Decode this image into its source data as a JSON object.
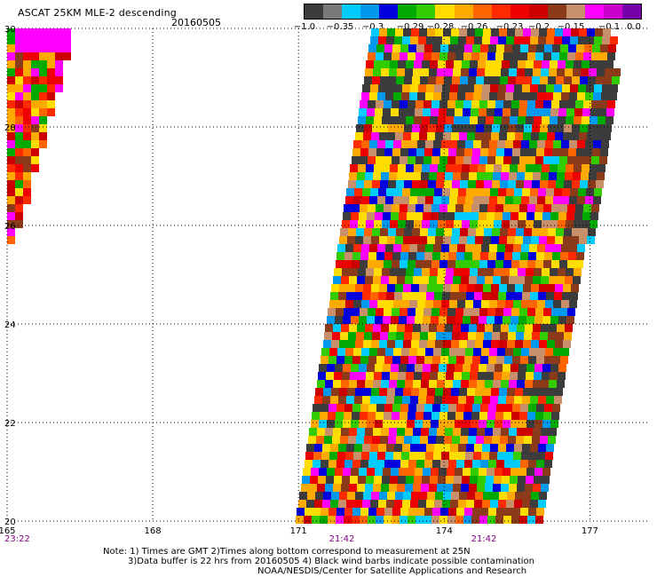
{
  "header": {
    "title": "ASCAT 25KM MLE-2 descending",
    "date": "20160505"
  },
  "colorbar": {
    "colors": [
      "#3c3c3c",
      "#7a7a7a",
      "#00ccff",
      "#0099ee",
      "#0000dd",
      "#00aa00",
      "#33cc00",
      "#ffdd00",
      "#ffaa00",
      "#ff6600",
      "#ff2a00",
      "#ee0000",
      "#cc0000",
      "#8b3a1a",
      "#c8906a",
      "#ff00ff",
      "#cc00cc",
      "#7700aa"
    ],
    "labels": [
      "−1.0",
      "−0.35",
      "−0.3",
      "−0.29",
      "−0.28",
      "−0.26",
      "−0.23",
      "−0.2",
      "−0.15",
      "−0.1",
      "0.0"
    ]
  },
  "axes": {
    "lon_range": [
      165,
      178.2
    ],
    "lat_range": [
      20,
      30
    ],
    "x_ticks": [
      "165",
      "168",
      "171",
      "174",
      "177"
    ],
    "y_ticks": [
      "30",
      "28",
      "26",
      "24",
      "22",
      "20"
    ],
    "time_labels": [
      "23:22",
      "21:42",
      "21:42"
    ],
    "time_color": "#880088",
    "grid": "dotted"
  },
  "notes": {
    "line1": "Note: 1) Times are GMT 2)Times along bottom correspond to measurement at 25N",
    "line2": "3)Data buffer is 22 hrs from 20160505 4) Black wind barbs indicate possible contamination",
    "line3": "NOAA/NESDIS/Center for Satellite Applications and Research"
  }
}
